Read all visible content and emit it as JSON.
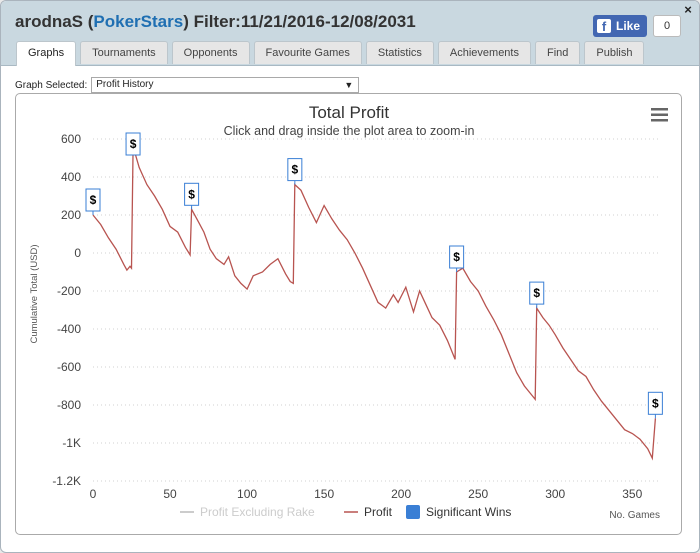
{
  "window": {
    "player": "arodnaS",
    "site": "PokerStars",
    "filter": "Filter:11/21/2016-12/08/2031",
    "close_label": "×"
  },
  "facebook": {
    "like_label": "Like",
    "count": "0"
  },
  "tabs": [
    {
      "label": "Graphs",
      "active": true
    },
    {
      "label": "Tournaments"
    },
    {
      "label": "Opponents"
    },
    {
      "label": "Favourite Games"
    },
    {
      "label": "Statistics"
    },
    {
      "label": "Achievements"
    },
    {
      "label": "Find"
    },
    {
      "label": "Publish"
    }
  ],
  "graph_select": {
    "label": "Graph Selected:",
    "value": "Profit History"
  },
  "chart_data": {
    "type": "line",
    "title": "Total Profit",
    "subtitle": "Click and drag inside the plot area to zoom-in",
    "xlabel": "No. Games",
    "ylabel": "Cumulative Total (USD)",
    "xlim": [
      0,
      368
    ],
    "ylim": [
      -1200,
      600
    ],
    "x_ticks": [
      0,
      50,
      100,
      150,
      200,
      250,
      300,
      350
    ],
    "y_ticks": [
      600,
      400,
      200,
      0,
      -200,
      -400,
      -600,
      -800,
      -1000,
      -1200
    ],
    "y_tick_labels": [
      "600",
      "400",
      "200",
      "0",
      "-200",
      "-400",
      "-600",
      "-800",
      "-1K",
      "-1.2K"
    ],
    "grid": true,
    "legend_position": "bottom",
    "legend": [
      {
        "name": "Profit Excluding Rake",
        "color": "#cccccc",
        "hidden": true
      },
      {
        "name": "Profit",
        "color": "#b85450"
      },
      {
        "name": "Significant Wins",
        "color": "#3a7fd5"
      }
    ],
    "series": [
      {
        "name": "Profit",
        "color": "#b85450",
        "points": [
          [
            0,
            200
          ],
          [
            5,
            150
          ],
          [
            10,
            80
          ],
          [
            15,
            20
          ],
          [
            20,
            -60
          ],
          [
            22,
            -90
          ],
          [
            24,
            -70
          ],
          [
            25,
            -80
          ],
          [
            26,
            560
          ],
          [
            30,
            450
          ],
          [
            35,
            360
          ],
          [
            40,
            300
          ],
          [
            45,
            230
          ],
          [
            50,
            140
          ],
          [
            55,
            110
          ],
          [
            60,
            30
          ],
          [
            63,
            -10
          ],
          [
            64,
            230
          ],
          [
            68,
            170
          ],
          [
            72,
            110
          ],
          [
            76,
            20
          ],
          [
            80,
            -30
          ],
          [
            85,
            -60
          ],
          [
            88,
            -20
          ],
          [
            92,
            -120
          ],
          [
            96,
            -160
          ],
          [
            100,
            -190
          ],
          [
            104,
            -120
          ],
          [
            110,
            -100
          ],
          [
            115,
            -60
          ],
          [
            120,
            -30
          ],
          [
            125,
            -110
          ],
          [
            128,
            -150
          ],
          [
            130,
            -160
          ],
          [
            131,
            360
          ],
          [
            135,
            330
          ],
          [
            140,
            240
          ],
          [
            145,
            160
          ],
          [
            150,
            250
          ],
          [
            155,
            180
          ],
          [
            160,
            120
          ],
          [
            165,
            70
          ],
          [
            170,
            0
          ],
          [
            175,
            -80
          ],
          [
            180,
            -170
          ],
          [
            185,
            -260
          ],
          [
            190,
            -290
          ],
          [
            195,
            -220
          ],
          [
            198,
            -260
          ],
          [
            203,
            -180
          ],
          [
            208,
            -310
          ],
          [
            212,
            -200
          ],
          [
            216,
            -270
          ],
          [
            220,
            -340
          ],
          [
            225,
            -380
          ],
          [
            230,
            -460
          ],
          [
            235,
            -560
          ],
          [
            236,
            -100
          ],
          [
            240,
            -80
          ],
          [
            245,
            -150
          ],
          [
            250,
            -200
          ],
          [
            255,
            -280
          ],
          [
            260,
            -350
          ],
          [
            265,
            -430
          ],
          [
            270,
            -530
          ],
          [
            275,
            -630
          ],
          [
            280,
            -700
          ],
          [
            285,
            -750
          ],
          [
            287,
            -770
          ],
          [
            288,
            -290
          ],
          [
            292,
            -340
          ],
          [
            296,
            -380
          ],
          [
            300,
            -430
          ],
          [
            305,
            -500
          ],
          [
            310,
            -560
          ],
          [
            315,
            -620
          ],
          [
            320,
            -650
          ],
          [
            325,
            -720
          ],
          [
            330,
            -780
          ],
          [
            335,
            -830
          ],
          [
            340,
            -880
          ],
          [
            345,
            -930
          ],
          [
            350,
            -950
          ],
          [
            355,
            -980
          ],
          [
            360,
            -1030
          ],
          [
            363,
            -1080
          ],
          [
            365,
            -870
          ]
        ]
      }
    ],
    "significant_wins": [
      {
        "x": 0,
        "y": 200,
        "label": "$"
      },
      {
        "x": 26,
        "y": 560,
        "label": "$"
      },
      {
        "x": 64,
        "y": 230,
        "label": "$"
      },
      {
        "x": 131,
        "y": 360,
        "label": "$"
      },
      {
        "x": 236,
        "y": -100,
        "label": "$"
      },
      {
        "x": 288,
        "y": -290,
        "label": "$"
      },
      {
        "x": 365,
        "y": -870,
        "label": "$"
      }
    ]
  }
}
